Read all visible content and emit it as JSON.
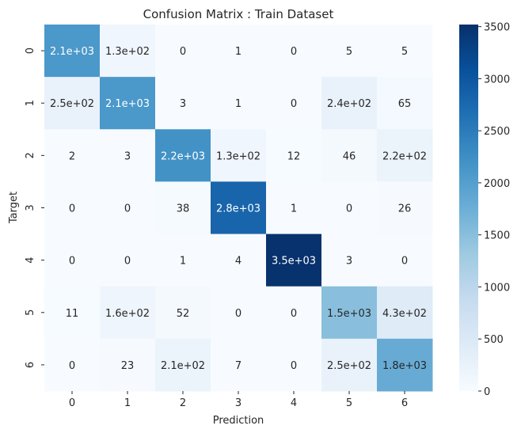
{
  "chart_data": {
    "type": "heatmap",
    "title": "Confusion Matrix : Train Dataset",
    "xlabel": "Prediction",
    "ylabel": "Target",
    "x_categories": [
      "0",
      "1",
      "2",
      "3",
      "4",
      "5",
      "6"
    ],
    "y_categories": [
      "0",
      "1",
      "2",
      "3",
      "4",
      "5",
      "6"
    ],
    "values": [
      [
        2100,
        130,
        0,
        1,
        0,
        5,
        5
      ],
      [
        250,
        2100,
        3,
        1,
        0,
        240,
        65
      ],
      [
        2,
        3,
        2200,
        130,
        12,
        46,
        220
      ],
      [
        0,
        0,
        38,
        2800,
        1,
        0,
        26
      ],
      [
        0,
        0,
        1,
        4,
        3500,
        3,
        0
      ],
      [
        11,
        160,
        52,
        0,
        0,
        1500,
        430
      ],
      [
        0,
        23,
        210,
        7,
        0,
        250,
        1800
      ]
    ],
    "labels": [
      [
        "2.1e+03",
        "1.3e+02",
        "0",
        "1",
        "0",
        "5",
        "5"
      ],
      [
        "2.5e+02",
        "2.1e+03",
        "3",
        "1",
        "0",
        "2.4e+02",
        "65"
      ],
      [
        "2",
        "3",
        "2.2e+03",
        "1.3e+02",
        "12",
        "46",
        "2.2e+02"
      ],
      [
        "0",
        "0",
        "38",
        "2.8e+03",
        "1",
        "0",
        "26"
      ],
      [
        "0",
        "0",
        "1",
        "4",
        "3.5e+03",
        "3",
        "0"
      ],
      [
        "11",
        "1.6e+02",
        "52",
        "0",
        "0",
        "1.5e+03",
        "4.3e+02"
      ],
      [
        "0",
        "23",
        "2.1e+02",
        "7",
        "0",
        "2.5e+02",
        "1.8e+03"
      ]
    ],
    "colorbar": {
      "min": 0,
      "max": 3520,
      "ticks": [
        0,
        500,
        1000,
        1500,
        2000,
        2500,
        3000,
        3500
      ]
    },
    "colormap": [
      "#f7fbff",
      "#deebf7",
      "#c6dbef",
      "#9ecae1",
      "#6baed6",
      "#4292c6",
      "#2171b5",
      "#08519c",
      "#08306b"
    ]
  }
}
